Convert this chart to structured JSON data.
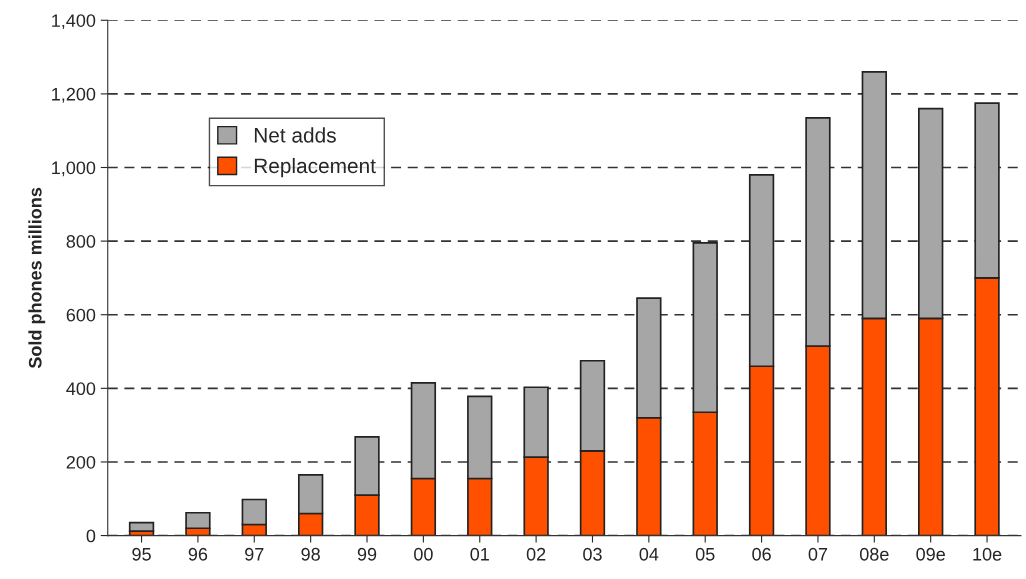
{
  "chart_data": {
    "type": "bar",
    "stacked": true,
    "ylabel": "Sold phones millions",
    "categories": [
      "95",
      "96",
      "97",
      "98",
      "99",
      "00",
      "01",
      "02",
      "03",
      "04",
      "05",
      "06",
      "07",
      "08e",
      "09e",
      "10e"
    ],
    "series": [
      {
        "name": "Replacement",
        "color": "#ff5000",
        "values": [
          12,
          20,
          30,
          60,
          110,
          155,
          155,
          213,
          230,
          320,
          335,
          460,
          515,
          590,
          590,
          700
        ]
      },
      {
        "name": "Net adds",
        "color": "#a6a6a6",
        "values": [
          23,
          42,
          68,
          105,
          158,
          260,
          223,
          190,
          245,
          325,
          460,
          520,
          620,
          670,
          570,
          475
        ]
      }
    ],
    "ylim": [
      0,
      1400
    ],
    "yticks": [
      0,
      200,
      400,
      600,
      800,
      {
        "value": 1000,
        "label": "1,000"
      },
      {
        "value": 1200,
        "label": "1,200"
      },
      {
        "value": 1400,
        "label": "1,400"
      }
    ],
    "grid": "y",
    "line_style": "dashed",
    "legend": "top left"
  }
}
